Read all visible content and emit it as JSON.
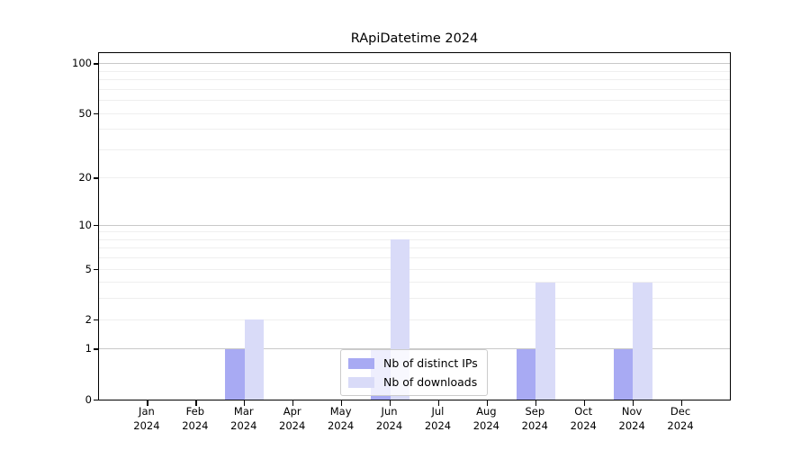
{
  "title": "RApiDatetime 2024",
  "colors": {
    "distinct_ips": "#a8aaf3",
    "downloads": "#d9dbf8",
    "grid_minor": "#efefef",
    "grid_major": "#c9c9c9",
    "axis_frame": "#000000",
    "background": "#ffffff"
  },
  "chart_data": {
    "type": "bar",
    "title": "RApiDatetime 2024",
    "categories": [
      "Jan 2024",
      "Feb 2024",
      "Mar 2024",
      "Apr 2024",
      "May 2024",
      "Jun 2024",
      "Jul 2024",
      "Aug 2024",
      "Sep 2024",
      "Oct 2024",
      "Nov 2024",
      "Dec 2024"
    ],
    "series": [
      {
        "name": "Nb of distinct IPs",
        "color": "#a8aaf3",
        "values": [
          0,
          0,
          1,
          0,
          0,
          1,
          0,
          0,
          1,
          0,
          1,
          0
        ]
      },
      {
        "name": "Nb of downloads",
        "color": "#d9dbf8",
        "values": [
          0,
          0,
          2,
          0,
          0,
          8,
          0,
          0,
          4,
          0,
          4,
          0
        ]
      }
    ],
    "xlabel": "",
    "ylabel": "",
    "yscale": "log10(1+x)",
    "ylim": [
      0,
      116
    ],
    "y_tick_values": [
      0,
      1,
      2,
      5,
      10,
      20,
      50,
      100
    ],
    "gridline_values": [
      1,
      2,
      3,
      4,
      5,
      6,
      7,
      8,
      9,
      10,
      20,
      30,
      40,
      50,
      60,
      70,
      80,
      90,
      100
    ],
    "major_gridline_values": [
      1,
      10,
      100
    ],
    "grid": "on",
    "legend_position": "lower center",
    "bar_mode": "grouped"
  }
}
